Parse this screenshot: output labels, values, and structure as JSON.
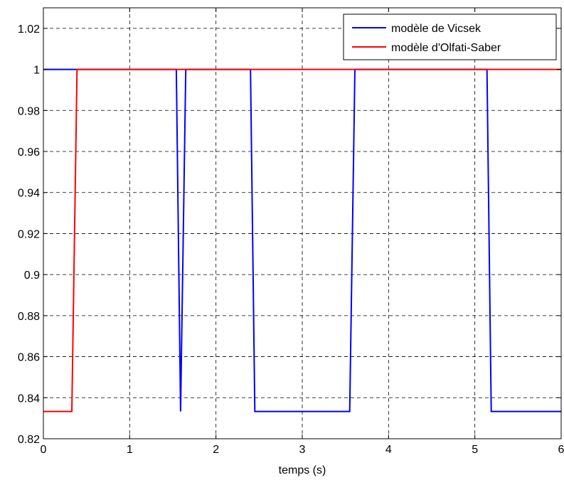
{
  "chart_data": {
    "type": "line",
    "xlabel": "temps (s)",
    "ylabel": "",
    "title": "",
    "xlim": [
      0,
      6
    ],
    "ylim": [
      0.82,
      1.03
    ],
    "xticks": [
      0,
      1,
      2,
      3,
      4,
      5,
      6
    ],
    "xtick_labels": [
      "0",
      "1",
      "2",
      "3",
      "4",
      "5",
      "6"
    ],
    "yticks": [
      0.82,
      0.84,
      0.86,
      0.88,
      0.9,
      0.92,
      0.94,
      0.96,
      0.98,
      1,
      1.02
    ],
    "ytick_labels": [
      "0.82",
      "0.84",
      "0.86",
      "0.88",
      "0.9",
      "0.92",
      "0.94",
      "0.96",
      "0.98",
      "1",
      "1.02"
    ],
    "grid": true,
    "legend_position": "top-right",
    "series": [
      {
        "name": "modèle de Vicsek",
        "color": "#0000ff",
        "x": [
          0,
          1.54,
          1.59,
          1.65,
          2.4,
          2.45,
          3.55,
          3.61,
          5.14,
          5.19,
          6
        ],
        "y": [
          1,
          1,
          0.8333,
          1,
          1,
          0.8333,
          0.8333,
          1,
          1,
          0.8333,
          0.8333
        ]
      },
      {
        "name": "modèle d'Olfati-Saber",
        "color": "#ff0000",
        "x": [
          0,
          0.33,
          0.39,
          6
        ],
        "y": [
          0.8333,
          0.8333,
          1,
          1
        ]
      }
    ]
  }
}
